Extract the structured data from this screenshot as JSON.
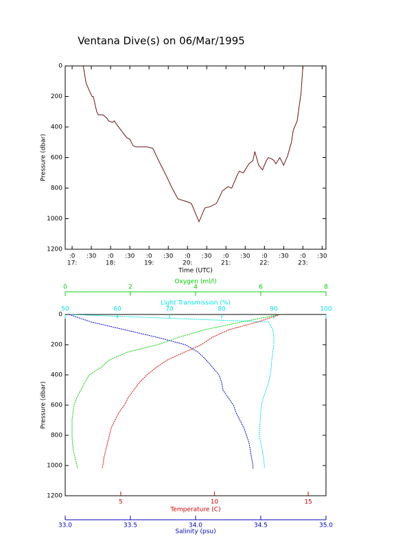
{
  "chart_data": [
    {
      "type": "line",
      "title": "Ventana Dive(s) on 06/Mar/1995",
      "x_label": "Time (UTC)",
      "y_label": "Pressure (dbar)",
      "xlim": [
        16.82,
        23.6
      ],
      "xticks": [
        {
          "value": 17,
          "label": ":0"
        },
        {
          "value": 17.5,
          "label": ":30"
        },
        {
          "value": 18,
          "label": ":0"
        },
        {
          "value": 18.5,
          "label": ":30"
        },
        {
          "value": 19,
          "label": ":0"
        },
        {
          "value": 19.5,
          "label": ":30"
        },
        {
          "value": 20,
          "label": ":0"
        },
        {
          "value": 20.5,
          "label": ":30"
        },
        {
          "value": 21,
          "label": ":0"
        },
        {
          "value": 21.5,
          "label": ":30"
        },
        {
          "value": 22,
          "label": ":0"
        },
        {
          "value": 22.5,
          "label": ":30"
        },
        {
          "value": 23,
          "label": ":0"
        },
        {
          "value": 23.5,
          "label": ":30"
        }
      ],
      "hour_labels": [
        {
          "value": 17,
          "label": "17:"
        },
        {
          "value": 18,
          "label": "18:"
        },
        {
          "value": 19,
          "label": "19:"
        },
        {
          "value": 20,
          "label": "20:"
        },
        {
          "value": 21,
          "label": "21:"
        },
        {
          "value": 22,
          "label": "22:"
        },
        {
          "value": 23,
          "label": "23:"
        }
      ],
      "ylim": [
        0,
        1200
      ],
      "y_inverted": true,
      "yticks": [
        0,
        200,
        400,
        600,
        800,
        1000,
        1200
      ],
      "color": "#6b1010",
      "x": [
        17.29,
        17.36,
        17.46,
        17.52,
        17.55,
        17.64,
        17.68,
        17.8,
        17.9,
        17.95,
        18.05,
        18.1,
        18.15,
        18.3,
        18.42,
        18.5,
        18.58,
        18.65,
        18.8,
        18.95,
        19.1,
        19.25,
        19.45,
        19.6,
        19.75,
        20.0,
        20.1,
        20.2,
        20.3,
        20.45,
        20.6,
        20.75,
        20.85,
        20.9,
        21.05,
        21.15,
        21.3,
        21.35,
        21.45,
        21.6,
        21.7,
        21.75,
        21.85,
        21.95,
        22.05,
        22.1,
        22.2,
        22.25,
        22.3,
        22.4,
        22.5,
        22.6,
        22.7,
        22.75,
        22.85,
        22.95,
        23.0
      ],
      "values": [
        0,
        110,
        170,
        200,
        200,
        300,
        320,
        320,
        340,
        360,
        370,
        360,
        380,
        430,
        470,
        480,
        520,
        530,
        530,
        530,
        540,
        620,
        720,
        800,
        870,
        890,
        900,
        960,
        1020,
        930,
        920,
        900,
        850,
        820,
        790,
        800,
        710,
        690,
        700,
        640,
        620,
        560,
        650,
        680,
        620,
        600,
        610,
        620,
        640,
        600,
        650,
        590,
        500,
        420,
        360,
        180,
        0
      ]
    },
    {
      "type": "profile",
      "y_label": "Pressure (dbar)",
      "ylim": [
        0,
        1200
      ],
      "y_inverted": true,
      "yticks": [
        0,
        200,
        400,
        600,
        800,
        1000,
        1200
      ],
      "pressure": [
        0,
        50,
        100,
        150,
        200,
        250,
        300,
        350,
        400,
        450,
        500,
        550,
        600,
        650,
        700,
        750,
        800,
        850,
        900,
        950,
        1000,
        1020
      ],
      "series": [
        {
          "name": "Oxygen (ml/l)",
          "color": "#00d000",
          "xlim": [
            0,
            8
          ],
          "xticks": [
            0,
            2,
            4,
            6,
            8
          ],
          "values": [
            6.6,
            5.4,
            4.3,
            3.5,
            2.84,
            1.9,
            1.37,
            1.1,
            0.74,
            0.6,
            0.48,
            0.36,
            0.27,
            0.24,
            0.21,
            0.21,
            0.21,
            0.22,
            0.25,
            0.3,
            0.36,
            0.38
          ]
        },
        {
          "name": "Light Transmission (%)",
          "color": "#00e0e0",
          "xlim": [
            50,
            100
          ],
          "xticks": [
            50,
            60,
            70,
            80,
            90,
            100
          ],
          "values": [
            51,
            89,
            89.8,
            90,
            90,
            89.8,
            89.6,
            89.5,
            89.3,
            89,
            88.5,
            88,
            87.6,
            87.5,
            87.4,
            87.3,
            87.2,
            87.5,
            87.8,
            88,
            88.2,
            88.2
          ]
        },
        {
          "name": "Temperature (C)",
          "color": "#d00000",
          "xlim": [
            2.04,
            15.95
          ],
          "xticks": [
            5,
            10,
            15
          ],
          "values": [
            13.5,
            12.3,
            10.8,
            9.9,
            9.3,
            8.4,
            7.5,
            6.9,
            6.4,
            6.0,
            5.7,
            5.4,
            5.2,
            4.9,
            4.7,
            4.5,
            4.4,
            4.3,
            4.2,
            4.1,
            4.05,
            4.0
          ]
        },
        {
          "name": "Salinity (psu)",
          "color": "#0000c0",
          "xlim": [
            33,
            35
          ],
          "xticks": [
            {
              "value": 33,
              "label": "33.0"
            },
            {
              "value": 33.5,
              "label": "33.5"
            },
            {
              "value": 34,
              "label": "34.0"
            },
            {
              "value": 34.5,
              "label": "34.5"
            },
            {
              "value": 35,
              "label": "35.0"
            }
          ],
          "values": [
            33.03,
            33.2,
            33.45,
            33.7,
            33.92,
            34.02,
            34.08,
            34.13,
            34.18,
            34.2,
            34.21,
            34.25,
            34.29,
            34.31,
            34.34,
            34.37,
            34.39,
            34.41,
            34.42,
            34.43,
            34.44,
            34.44
          ]
        }
      ]
    }
  ]
}
